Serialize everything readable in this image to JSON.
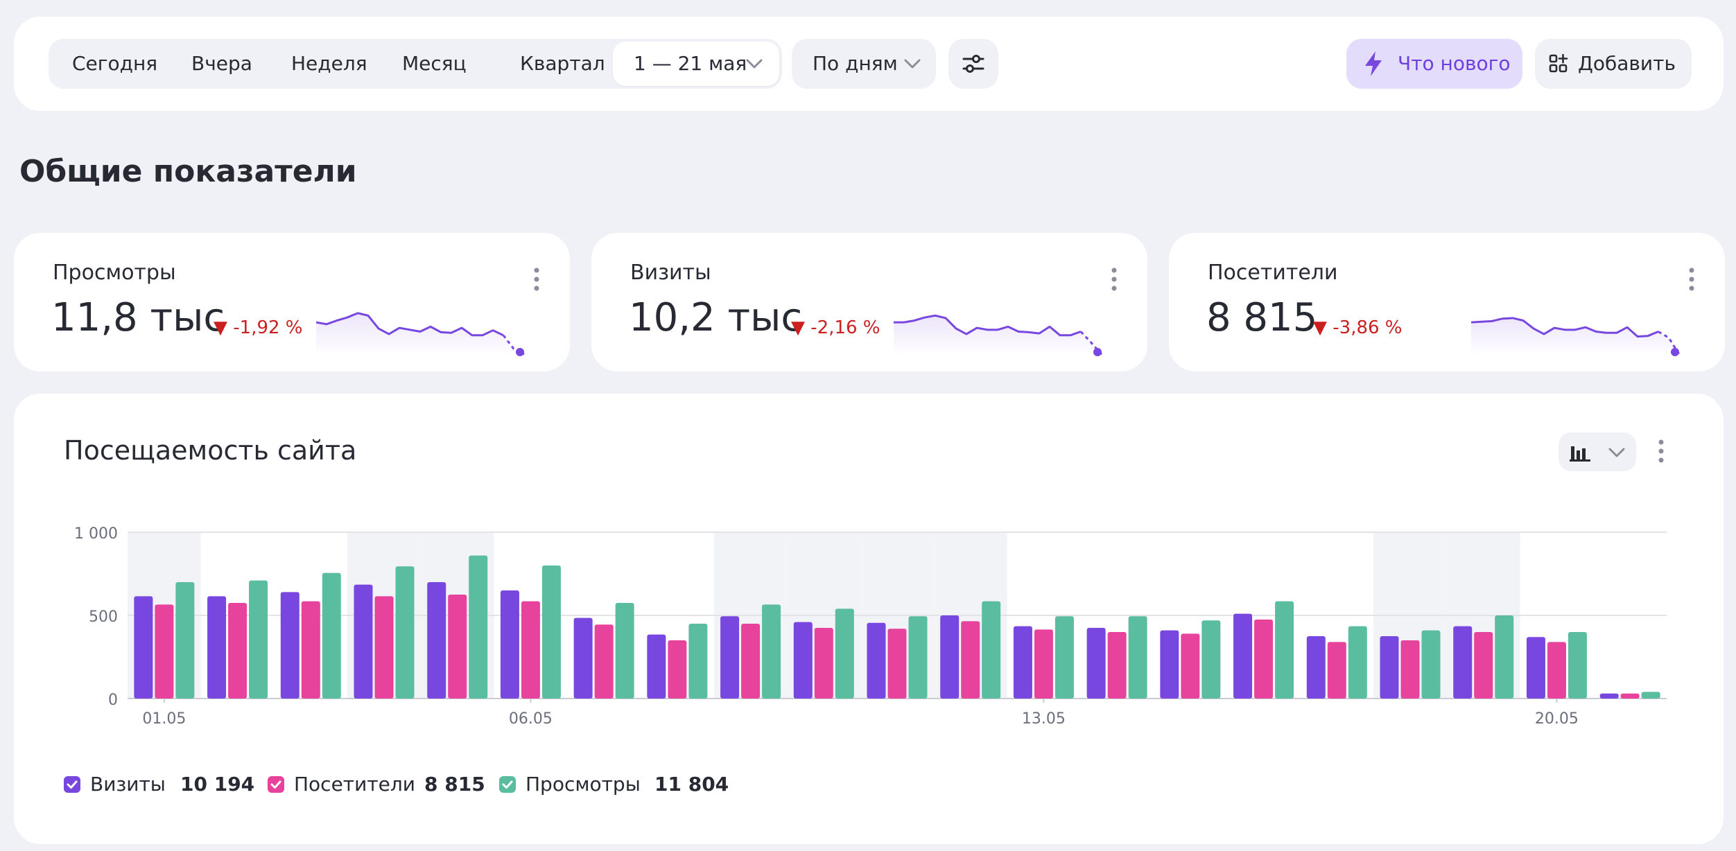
{
  "toolbar": {
    "periods": [
      "Сегодня",
      "Вчера",
      "Неделя",
      "Месяц",
      "Квартал"
    ],
    "date_range": "1 — 21 мая",
    "grouping": "По дням",
    "whats_new": "Что нового",
    "add": "Добавить"
  },
  "section_title": "Общие показатели",
  "kpis": [
    {
      "title": "Просмотры",
      "value": "11,8 тыс",
      "delta": "-1,92 %",
      "trend": "down"
    },
    {
      "title": "Визиты",
      "value": "10,2 тыс",
      "delta": "-2,16 %",
      "trend": "down"
    },
    {
      "title": "Посетители",
      "value": "8 815",
      "delta": "-3,86 %",
      "trend": "down"
    }
  ],
  "colors": {
    "accent": "#7747e0",
    "visits": "#7747e0",
    "visitors": "#e8439c",
    "views": "#5bbd9f",
    "negative": "#cc1f1f",
    "weekend_band": "#f2f3f7"
  },
  "chart_data": {
    "type": "bar",
    "title": "Посещаемость сайта",
    "xlabel": "",
    "ylabel": "",
    "ylim": [
      0,
      1000
    ],
    "yticks": [
      {
        "value": 0,
        "label": "0"
      },
      {
        "value": 500,
        "label": "500"
      },
      {
        "value": 1000,
        "label": "1 000"
      }
    ],
    "xtick_labels": [
      {
        "index": 0,
        "label": "01.05"
      },
      {
        "index": 5,
        "label": "06.05"
      },
      {
        "index": 12,
        "label": "13.05"
      },
      {
        "index": 19,
        "label": "20.05"
      }
    ],
    "categories": [
      "01.05",
      "02.05",
      "03.05",
      "04.05",
      "05.05",
      "06.05",
      "07.05",
      "08.05",
      "09.05",
      "10.05",
      "11.05",
      "12.05",
      "13.05",
      "14.05",
      "15.05",
      "16.05",
      "17.05",
      "18.05",
      "19.05",
      "20.05",
      "21.05"
    ],
    "highlighted_days": [
      "01.05",
      "04.05",
      "05.05",
      "09.05",
      "10.05",
      "11.05",
      "12.05",
      "18.05",
      "19.05"
    ],
    "series": [
      {
        "name": "Визиты",
        "total": "10 194",
        "values": [
          615,
          615,
          640,
          685,
          700,
          650,
          485,
          385,
          495,
          460,
          455,
          500,
          435,
          425,
          410,
          510,
          375,
          375,
          435,
          370,
          30
        ]
      },
      {
        "name": "Посетители",
        "total": "8 815",
        "values": [
          565,
          575,
          585,
          615,
          625,
          585,
          445,
          350,
          450,
          425,
          420,
          465,
          415,
          400,
          390,
          475,
          340,
          350,
          400,
          340,
          30
        ]
      },
      {
        "name": "Просмотры",
        "total": "11 804",
        "values": [
          700,
          710,
          755,
          795,
          860,
          800,
          575,
          450,
          565,
          540,
          495,
          585,
          495,
          495,
          470,
          585,
          435,
          410,
          500,
          400,
          40
        ]
      }
    ],
    "grid": true,
    "legend_position": "bottom-left"
  },
  "sparklines": [
    [
      0.55,
      0.52,
      0.58,
      0.63,
      0.7,
      0.66,
      0.45,
      0.36,
      0.46,
      0.43,
      0.4,
      0.48,
      0.39,
      0.38,
      0.46,
      0.34,
      0.34,
      0.42,
      0.34,
      0.12,
      0.03
    ],
    [
      0.55,
      0.55,
      0.58,
      0.63,
      0.66,
      0.62,
      0.45,
      0.36,
      0.46,
      0.43,
      0.43,
      0.48,
      0.4,
      0.39,
      0.37,
      0.48,
      0.34,
      0.34,
      0.4,
      0.22,
      0.03
    ],
    [
      0.55,
      0.56,
      0.57,
      0.61,
      0.62,
      0.58,
      0.45,
      0.36,
      0.46,
      0.43,
      0.43,
      0.47,
      0.4,
      0.38,
      0.38,
      0.47,
      0.32,
      0.33,
      0.4,
      0.3,
      0.03
    ]
  ]
}
